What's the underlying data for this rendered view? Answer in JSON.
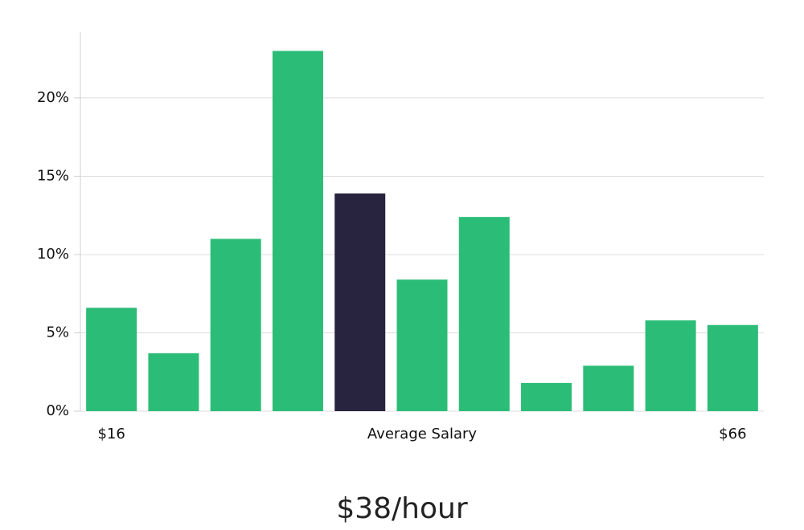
{
  "chart_data": {
    "type": "bar",
    "categories": [
      "$16",
      null,
      null,
      null,
      null,
      "Average Salary",
      null,
      null,
      null,
      null,
      "$66"
    ],
    "values": [
      6.6,
      3.7,
      11.0,
      23.0,
      13.9,
      8.4,
      12.4,
      1.8,
      2.9,
      5.8,
      5.5
    ],
    "colors": [
      "#2bbd77",
      "#2bbd77",
      "#2bbd77",
      "#2bbd77",
      "#28243f",
      "#2bbd77",
      "#2bbd77",
      "#2bbd77",
      "#2bbd77",
      "#2bbd77",
      "#2bbd77"
    ],
    "ylim": [
      0,
      24.2
    ],
    "yticks": [
      {
        "value": 0,
        "label": "0%"
      },
      {
        "value": 5,
        "label": "5%"
      },
      {
        "value": 10,
        "label": "10%"
      },
      {
        "value": 15,
        "label": "15%"
      },
      {
        "value": 20,
        "label": "20%"
      }
    ],
    "grid": true,
    "annotation": "$38/hour"
  }
}
